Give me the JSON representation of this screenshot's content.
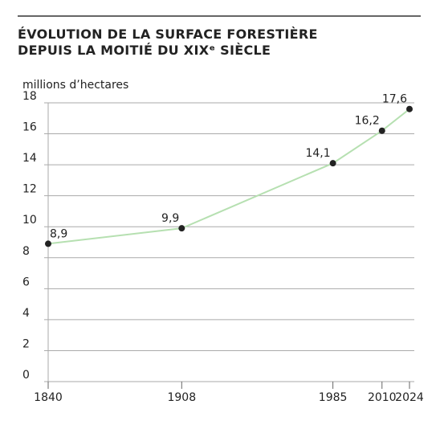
{
  "chart_data": {
    "type": "line",
    "title": [
      "ÉVOLUTION DE LA SURFACE FORESTIÈRE",
      "DEPUIS LA MOITIÉ DU XIXᵉ SIÈCLE"
    ],
    "y_label": "millions d’hectares",
    "x": [
      1840,
      1908,
      1985,
      2010,
      2024
    ],
    "values": [
      8.9,
      9.9,
      14.1,
      16.2,
      17.6
    ],
    "value_labels": [
      "8,9",
      "9,9",
      "14,1",
      "16,2",
      "17,6"
    ],
    "color": "#b6e0b1",
    "marker_color": "#222222",
    "xlim": [
      1840,
      2024
    ],
    "xticks": [
      1840,
      1908,
      1985,
      2010,
      2024
    ],
    "ylim": [
      0,
      18
    ],
    "yticks": [
      0,
      2,
      4,
      6,
      8,
      10,
      12,
      14,
      16,
      18
    ],
    "grid": true
  }
}
